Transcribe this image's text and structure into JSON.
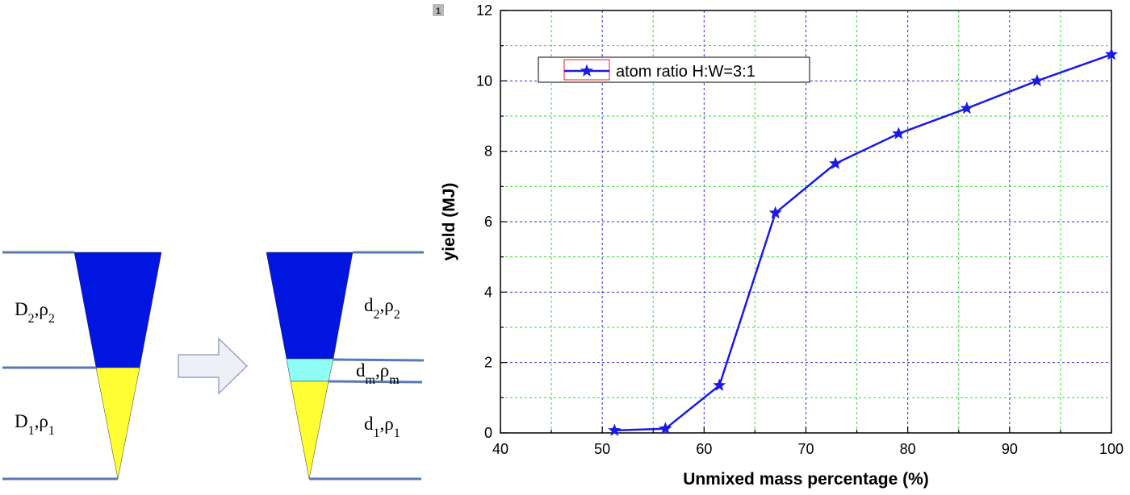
{
  "diagram": {
    "before": {
      "upper_label": {
        "main": "D",
        "sub1": "2",
        "mid": ",ρ",
        "sub2": "2"
      },
      "lower_label": {
        "main": "D",
        "sub1": "1",
        "mid": ",ρ",
        "sub2": "1"
      }
    },
    "after": {
      "upper_label": {
        "main": "d",
        "sub1": "2",
        "mid": ",ρ",
        "sub2": "2"
      },
      "mixed_label": {
        "main": "d",
        "sub1": "m",
        "mid": ",ρ",
        "sub2": "m"
      },
      "lower_label": {
        "main": "d",
        "sub1": "1",
        "mid": ",ρ",
        "sub2": "1"
      }
    },
    "colors": {
      "upper_fuel": "#0016e0",
      "lower_fuel": "#ffff33",
      "mixed_fuel": "#8ffcf6",
      "lines": "#5a78b4",
      "arrow_fill": "#eef0f8",
      "arrow_stroke": "#9aa4c4"
    }
  },
  "panel_badge": "1",
  "chart_data": {
    "type": "line",
    "xlabel": "Unmixed mass percentage (%)",
    "ylabel": "yield (MJ)",
    "xlim": [
      40,
      100
    ],
    "ylim": [
      0,
      12
    ],
    "xticks": [
      40,
      50,
      60,
      70,
      80,
      90,
      100
    ],
    "yticks": [
      0,
      2,
      4,
      6,
      8,
      10,
      12
    ],
    "grid": true,
    "legend_position": "top-left",
    "series": [
      {
        "name": "atom ratio H:W=3:1",
        "color": "#1a1ae6",
        "marker": "star",
        "x": [
          51.2,
          56.2,
          61.5,
          67.0,
          72.9,
          79.1,
          85.8,
          92.7,
          100.0
        ],
        "y": [
          0.07,
          0.12,
          1.35,
          6.25,
          7.65,
          8.5,
          9.22,
          10.0,
          10.75
        ]
      }
    ]
  }
}
